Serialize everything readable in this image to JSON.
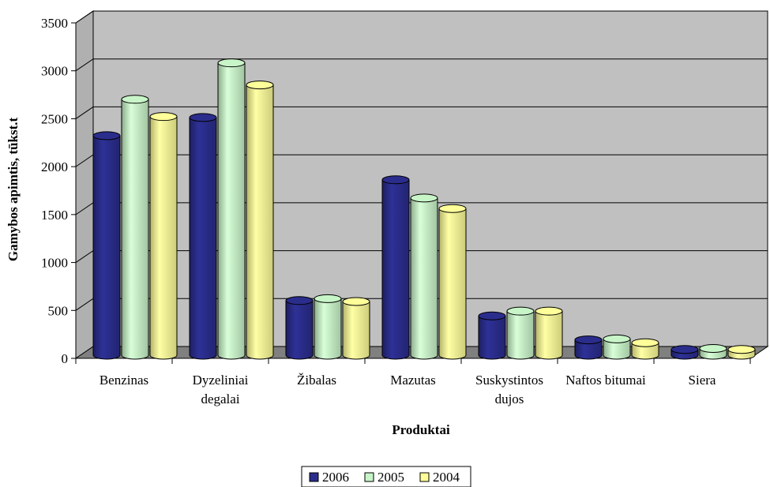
{
  "chart_data": {
    "type": "bar",
    "title": "",
    "xlabel": "Produktai",
    "ylabel": "Gamybos apimtis, tūkst.t",
    "ylim": [
      0,
      3500
    ],
    "yticks": [
      "0",
      "500",
      "1000",
      "1500",
      "2000",
      "2500",
      "3000",
      "3500"
    ],
    "categories": [
      [
        "Benzinas"
      ],
      [
        "Dyzeliniai",
        "degalai"
      ],
      [
        "Žibalas"
      ],
      [
        "Mazutas"
      ],
      [
        "Suskystintos",
        "dujos"
      ],
      [
        "Naftos bitumai"
      ],
      [
        "Siera"
      ]
    ],
    "series": [
      {
        "name": "2006",
        "color": "#2b2d8c",
        "values": [
          2290,
          2480,
          570,
          1830,
          410,
          160,
          60
        ]
      },
      {
        "name": "2005",
        "color": "#c8f5c8",
        "values": [
          2670,
          3050,
          590,
          1640,
          460,
          170,
          70
        ]
      },
      {
        "name": "2004",
        "color": "#ffff99",
        "values": [
          2490,
          2820,
          560,
          1530,
          460,
          130,
          60
        ]
      }
    ],
    "grid": true,
    "legend": "bottom",
    "style": "3d-cylinder"
  }
}
